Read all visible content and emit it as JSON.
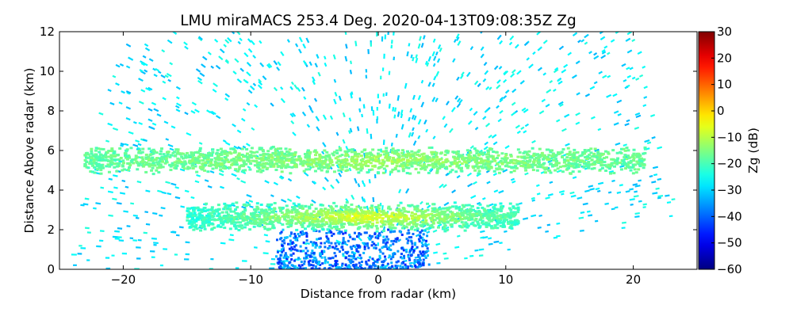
{
  "chart_data": {
    "type": "heatmap",
    "title": "LMU miraMACS 253.4 Deg. 2020-04-13T09:08:35Z  Zg",
    "xlabel": "Distance from radar (km)",
    "ylabel": "Distance Above radar  (km)",
    "xlim": [
      -25,
      25
    ],
    "ylim": [
      0,
      12
    ],
    "x_ticks": [
      -20,
      -10,
      0,
      10,
      20
    ],
    "x_tick_labels": [
      "−20",
      "−10",
      "0",
      "10",
      "20"
    ],
    "y_ticks": [
      0,
      2,
      4,
      6,
      8,
      10,
      12
    ],
    "y_tick_labels": [
      "0",
      "2",
      "4",
      "6",
      "8",
      "10",
      "12"
    ],
    "colorbar": {
      "label": "Zg (dB)",
      "range": [
        -60,
        30
      ],
      "colormap": "jet",
      "ticks": [
        30,
        20,
        10,
        0,
        -10,
        -20,
        -30,
        -40,
        -50,
        -60
      ],
      "tick_labels": [
        "30",
        "20",
        "10",
        "0",
        "−10",
        "−20",
        "−30",
        "−40",
        "−50",
        "−60"
      ]
    },
    "grid": false,
    "features": [
      {
        "description": "upper cloud layer",
        "x_range": [
          -23,
          21
        ],
        "height_km": [
          4.8,
          6.2
        ],
        "value_db": -18,
        "peak_db": -12
      },
      {
        "description": "lower cloud layer",
        "x_range": [
          -15,
          11
        ],
        "height_km": [
          1.9,
          3.4
        ],
        "value_db": -22,
        "peak_db": -5
      },
      {
        "description": "near-surface returns",
        "x_range": [
          -8,
          4
        ],
        "height_km": [
          0,
          2
        ],
        "value_db": -38
      },
      {
        "description": "noise speckle",
        "x_range": [
          -24,
          24
        ],
        "height_km": [
          0,
          12
        ],
        "value_db": -28
      }
    ],
    "no_data_region": "lower-right wedge below line from (2.5, 0) to (23.5, 2.6)"
  }
}
